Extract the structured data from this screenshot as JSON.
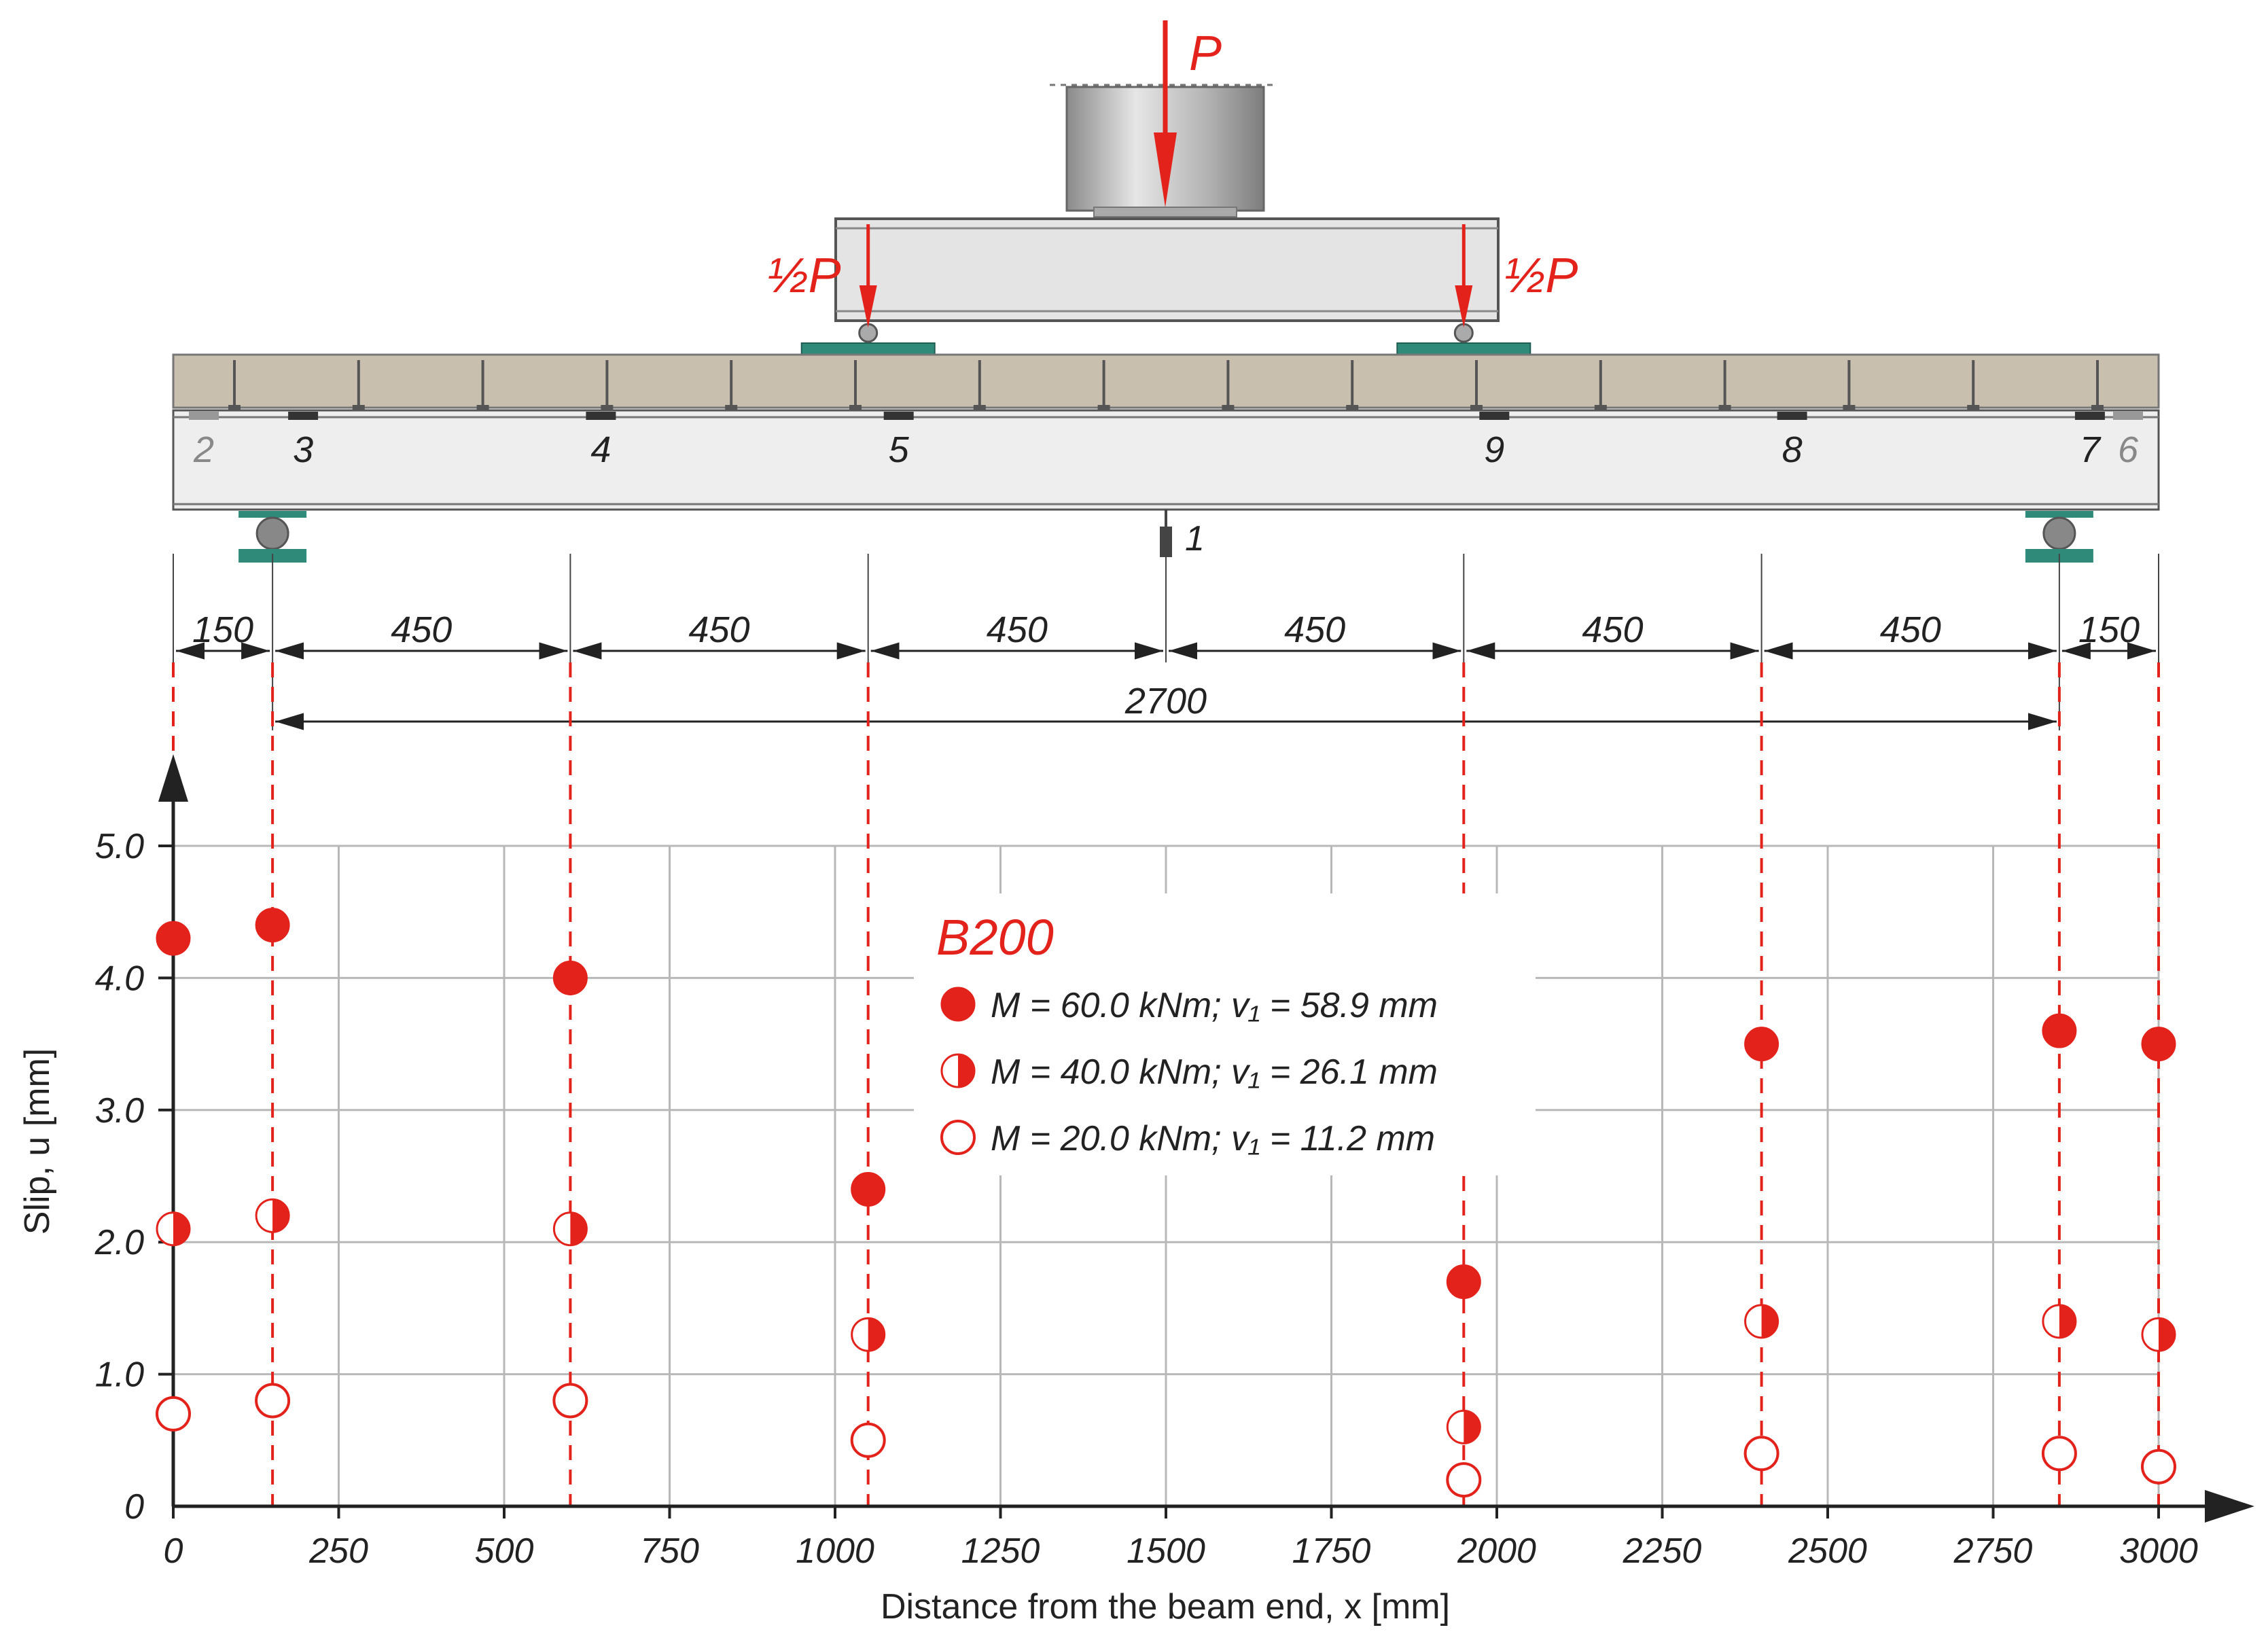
{
  "colors": {
    "red": "#e3231b",
    "grid": "#b8b8b8",
    "axis": "#222222",
    "concrete": "#c9bfae",
    "steel": "#eeeeee",
    "plate": "#2f8a7a",
    "loadblock": "#bdbdbd"
  },
  "setup": {
    "load_label": "P",
    "half_load_left": "½P",
    "half_load_right": "½P",
    "gauges": [
      {
        "label": "2",
        "x": 0
      },
      {
        "label": "3",
        "x": 150
      },
      {
        "label": "4",
        "x": 600
      },
      {
        "label": "5",
        "x": 1050
      },
      {
        "label": "9",
        "x": 1950
      },
      {
        "label": "8",
        "x": 2400
      },
      {
        "label": "7",
        "x": 2850
      },
      {
        "label": "6",
        "x": 3000
      }
    ],
    "deflection_gauge": {
      "label": "1",
      "x": 1500
    },
    "supports_x": [
      150,
      2850
    ],
    "load_points_x": [
      1050,
      1950
    ],
    "dimensions": {
      "ticks_x": [
        0,
        150,
        600,
        1050,
        1500,
        1950,
        2400,
        2850,
        3000
      ],
      "segments": [
        "150",
        "450",
        "450",
        "450",
        "450",
        "450",
        "450",
        "150"
      ],
      "span_label": "2700"
    },
    "dashed_lines_x": [
      0,
      150,
      600,
      1050,
      1950,
      2400,
      2850,
      3000
    ]
  },
  "chart_data": {
    "type": "scatter",
    "title": "",
    "xlabel": "Distance from the beam end, x [mm]",
    "ylabel": "Slip, u [mm]",
    "xlim": [
      0,
      3000
    ],
    "ylim": [
      0,
      5.0
    ],
    "xticks": [
      0,
      250,
      500,
      750,
      1000,
      1250,
      1500,
      1750,
      2000,
      2250,
      2500,
      2750,
      3000
    ],
    "xtick_labels": [
      "0",
      "250",
      "500",
      "750",
      "1000",
      "1250",
      "1500",
      "1750",
      "2000",
      "2250",
      "2500",
      "2750",
      "3000"
    ],
    "yticks": [
      0,
      1.0,
      2.0,
      3.0,
      4.0,
      5.0
    ],
    "ytick_labels": [
      "0",
      "1.0",
      "2.0",
      "3.0",
      "4.0",
      "5.0"
    ],
    "grid": true,
    "legend_title": "B200",
    "legend_position": "center",
    "x": [
      0,
      150,
      600,
      1050,
      1950,
      2400,
      2850,
      3000
    ],
    "series": [
      {
        "name": "M = 60.0 kNm; v₁ = 58.9 mm",
        "marker": "filled",
        "values": [
          4.3,
          4.4,
          4.0,
          2.4,
          1.7,
          3.5,
          3.6,
          3.5
        ]
      },
      {
        "name": "M = 40.0 kNm; v₁ = 26.1 mm",
        "marker": "half",
        "values": [
          2.1,
          2.2,
          2.1,
          1.3,
          0.6,
          1.4,
          1.4,
          1.3
        ]
      },
      {
        "name": "M = 20.0 kNm; v₁ = 11.2 mm",
        "marker": "open",
        "values": [
          0.7,
          0.8,
          0.8,
          0.5,
          0.2,
          0.4,
          0.4,
          0.3
        ]
      }
    ]
  }
}
